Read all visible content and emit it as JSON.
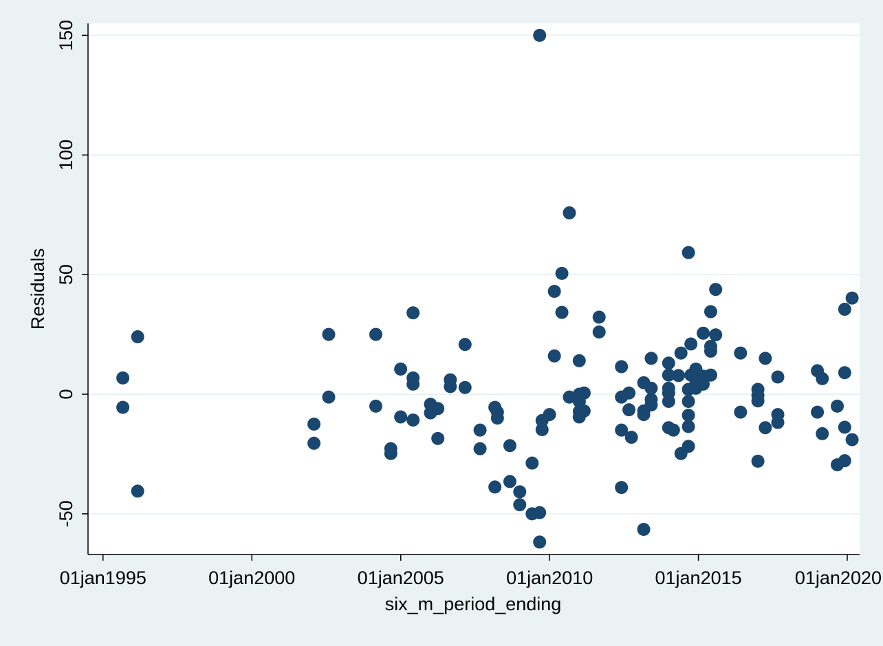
{
  "colors": {
    "outer_background": "#eaf2f3",
    "plot_background": "#ffffff",
    "gridline": "#eaf2f3",
    "marker": "#1a476f",
    "axis": "#000000"
  },
  "chart_data": {
    "type": "scatter",
    "xlabel": "six_m_period_ending",
    "ylabel": "Residuals",
    "x_axis_type": "date",
    "xlim": [
      "1994-07-01",
      "2020-06-01"
    ],
    "ylim": [
      -67,
      155
    ],
    "x_ticks": [
      {
        "date": "1995-01-01",
        "label": "01jan1995"
      },
      {
        "date": "2000-01-01",
        "label": "01jan2000"
      },
      {
        "date": "2005-01-01",
        "label": "01jan2005"
      },
      {
        "date": "2010-01-01",
        "label": "01jan2010"
      },
      {
        "date": "2015-01-01",
        "label": "01jan2015"
      },
      {
        "date": "2020-01-01",
        "label": "01jan2020"
      }
    ],
    "y_ticks": [
      {
        "value": -50,
        "label": "-50"
      },
      {
        "value": 0,
        "label": "0"
      },
      {
        "value": 50,
        "label": "50"
      },
      {
        "value": 100,
        "label": "100"
      },
      {
        "value": 150,
        "label": "150"
      }
    ],
    "grid": {
      "horizontal": true,
      "vertical": false
    },
    "legend": "none",
    "points": [
      [
        "1995-09-01",
        6.8
      ],
      [
        "1995-09-01",
        -5.5
      ],
      [
        "1996-03-01",
        24.0
      ],
      [
        "1996-03-01",
        -40.5
      ],
      [
        "2002-02-01",
        -12.5
      ],
      [
        "2002-02-01",
        -20.5
      ],
      [
        "2002-08-01",
        25.0
      ],
      [
        "2002-08-01",
        -1.2
      ],
      [
        "2004-03-01",
        25.0
      ],
      [
        "2004-03-01",
        -5.0
      ],
      [
        "2004-09-01",
        -22.8
      ],
      [
        "2004-09-01",
        -24.8
      ],
      [
        "2004-12-31",
        10.5
      ],
      [
        "2004-12-31",
        -9.5
      ],
      [
        "2005-06-01",
        34.0
      ],
      [
        "2005-06-01",
        6.8
      ],
      [
        "2005-06-01",
        4.2
      ],
      [
        "2005-06-01",
        -10.8
      ],
      [
        "2006-01-01",
        -4.2
      ],
      [
        "2006-01-01",
        -7.8
      ],
      [
        "2006-04-01",
        -6.0
      ],
      [
        "2006-04-01",
        -18.5
      ],
      [
        "2006-09-01",
        6.0
      ],
      [
        "2006-09-01",
        3.2
      ],
      [
        "2007-03-01",
        20.8
      ],
      [
        "2007-03-01",
        2.8
      ],
      [
        "2007-09-01",
        -15.0
      ],
      [
        "2007-09-01",
        -22.8
      ],
      [
        "2008-03-01",
        -5.5
      ],
      [
        "2008-03-01",
        -38.8
      ],
      [
        "2008-04-01",
        -7.5
      ],
      [
        "2008-04-01",
        -10.0
      ],
      [
        "2008-09-01",
        -21.5
      ],
      [
        "2008-09-01",
        -36.5
      ],
      [
        "2008-12-31",
        -40.8
      ],
      [
        "2008-12-31",
        -46.2
      ],
      [
        "2009-06-01",
        -28.8
      ],
      [
        "2009-06-01",
        -50.0
      ],
      [
        "2009-09-01",
        -49.5
      ],
      [
        "2009-09-01",
        -61.8
      ],
      [
        "2009-10-01",
        -11.0
      ],
      [
        "2009-10-01",
        -14.8
      ],
      [
        "2009-09-01",
        150.0
      ],
      [
        "2009-12-31",
        -8.5
      ],
      [
        "2010-03-01",
        43.0
      ],
      [
        "2010-03-01",
        16.0
      ],
      [
        "2010-06-01",
        50.5
      ],
      [
        "2010-06-01",
        34.2
      ],
      [
        "2010-09-01",
        75.8
      ],
      [
        "2010-09-01",
        -1.2
      ],
      [
        "2010-12-31",
        14.0
      ],
      [
        "2010-12-31",
        -9.5
      ],
      [
        "2011-01-01",
        -3.0
      ],
      [
        "2011-01-01",
        0.0
      ],
      [
        "2011-01-01",
        -7.2
      ],
      [
        "2011-03-01",
        0.5
      ],
      [
        "2011-03-01",
        -7.0
      ],
      [
        "2011-09-01",
        32.2
      ],
      [
        "2011-09-01",
        26.0
      ],
      [
        "2012-06-01",
        11.5
      ],
      [
        "2012-06-01",
        -1.2
      ],
      [
        "2012-06-01",
        -15.0
      ],
      [
        "2012-06-01",
        -39.0
      ],
      [
        "2012-09-01",
        0.5
      ],
      [
        "2012-09-01",
        -6.5
      ],
      [
        "2012-10-01",
        -18.0
      ],
      [
        "2013-03-01",
        4.8
      ],
      [
        "2013-03-01",
        -7.0
      ],
      [
        "2013-03-01",
        -8.5
      ],
      [
        "2013-03-01",
        -56.5
      ],
      [
        "2013-06-01",
        15.0
      ],
      [
        "2013-06-01",
        2.5
      ],
      [
        "2013-06-01",
        -2.2
      ],
      [
        "2013-06-01",
        -4.5
      ],
      [
        "2014-01-01",
        13.0
      ],
      [
        "2014-01-01",
        8.0
      ],
      [
        "2014-01-01",
        2.5
      ],
      [
        "2014-01-01",
        0.5
      ],
      [
        "2014-01-01",
        -3.0
      ],
      [
        "2014-01-01",
        -14.0
      ],
      [
        "2014-03-01",
        -15.0
      ],
      [
        "2014-05-01",
        7.8
      ],
      [
        "2014-06-01",
        17.2
      ],
      [
        "2014-06-01",
        -24.8
      ],
      [
        "2014-09-01",
        59.2
      ],
      [
        "2014-09-01",
        2.0
      ],
      [
        "2014-09-01",
        -3.0
      ],
      [
        "2014-09-01",
        -8.8
      ],
      [
        "2014-09-01",
        -13.5
      ],
      [
        "2014-09-01",
        -21.8
      ],
      [
        "2014-10-01",
        21.0
      ],
      [
        "2014-10-01",
        8.0
      ],
      [
        "2014-12-01",
        10.5
      ],
      [
        "2014-12-01",
        5.5
      ],
      [
        "2014-12-01",
        2.5
      ],
      [
        "2015-03-01",
        25.5
      ],
      [
        "2015-03-01",
        7.5
      ],
      [
        "2015-03-01",
        4.2
      ],
      [
        "2015-06-01",
        34.5
      ],
      [
        "2015-06-01",
        20.0
      ],
      [
        "2015-06-01",
        18.0
      ],
      [
        "2015-06-01",
        8.0
      ],
      [
        "2015-08-01",
        43.8
      ],
      [
        "2015-08-01",
        24.8
      ],
      [
        "2016-06-01",
        17.2
      ],
      [
        "2016-06-01",
        -7.5
      ],
      [
        "2016-12-31",
        2.0
      ],
      [
        "2016-12-31",
        -0.5
      ],
      [
        "2016-12-31",
        -2.8
      ],
      [
        "2016-12-31",
        -28.0
      ],
      [
        "2017-04-01",
        15.0
      ],
      [
        "2017-04-01",
        -14.0
      ],
      [
        "2017-09-01",
        7.2
      ],
      [
        "2017-09-01",
        -8.5
      ],
      [
        "2017-09-01",
        -11.8
      ],
      [
        "2018-12-31",
        9.8
      ],
      [
        "2018-12-31",
        -7.5
      ],
      [
        "2019-03-01",
        6.5
      ],
      [
        "2019-03-01",
        -16.5
      ],
      [
        "2019-09-01",
        -5.0
      ],
      [
        "2019-09-01",
        -29.5
      ],
      [
        "2019-12-01",
        35.5
      ],
      [
        "2019-12-01",
        9.0
      ],
      [
        "2019-12-01",
        -13.8
      ],
      [
        "2019-12-01",
        -27.8
      ],
      [
        "2020-03-01",
        40.2
      ],
      [
        "2020-03-01",
        -19.0
      ]
    ]
  }
}
